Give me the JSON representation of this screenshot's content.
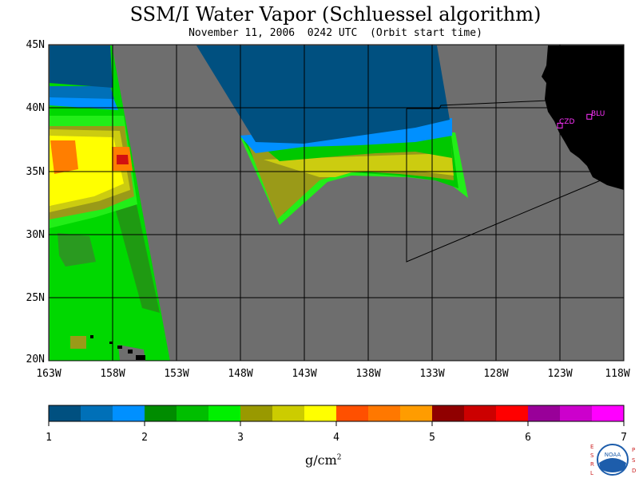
{
  "title": "SSM/I Water Vapor (Schluessel algorithm)",
  "subtitle": "November 11, 2006  0242 UTC  (Orbit start time)",
  "latitude_labels": [
    "45N",
    "40N",
    "35N",
    "30N",
    "25N",
    "20N"
  ],
  "longitude_labels": [
    "163W",
    "158W",
    "153W",
    "148W",
    "143W",
    "138W",
    "133W",
    "128W",
    "123W",
    "118W"
  ],
  "stations": [
    {
      "label": "CZD",
      "lon": -123.0,
      "lat": 38.6
    },
    {
      "label": "BLU",
      "lon": -120.7,
      "lat": 39.3
    }
  ],
  "colorbar": {
    "labels": [
      "1",
      "2",
      "3",
      "4",
      "5",
      "6",
      "7"
    ],
    "units_base": "g/cm",
    "units_exponent": "2",
    "colors": [
      "#005080",
      "#0070b8",
      "#0090ff",
      "#008c00",
      "#00be00",
      "#00f000",
      "#999900",
      "#cccc00",
      "#ffff00",
      "#ff5000",
      "#ff7800",
      "#ff9c00",
      "#900000",
      "#cc0000",
      "#ff0000",
      "#990099",
      "#cc00cc",
      "#ff00ff"
    ]
  },
  "map_colors": {
    "no_data": "#6e6e6e",
    "land": "#000000",
    "station": "#ff33ff"
  },
  "logo": {
    "left_letters": "ESRL",
    "right_letters": "PSD",
    "center_text": "NOAA",
    "accent": "#1d5dab",
    "letter_color": "#cc2222"
  }
}
